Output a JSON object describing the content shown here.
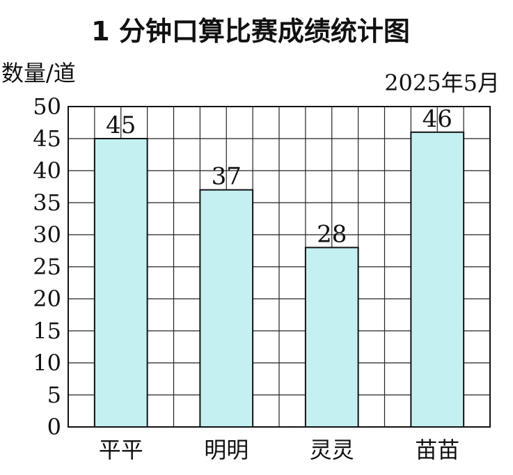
{
  "chart_data": {
    "type": "bar",
    "title": "1 分钟口算比赛成绩统计图",
    "ylabel": "数量/道",
    "date_note": "2025年5月",
    "categories": [
      "平平",
      "明明",
      "灵灵",
      "苗苗"
    ],
    "values": [
      45,
      37,
      28,
      46
    ],
    "data_labels": [
      "45",
      "37",
      "28",
      "46"
    ],
    "yticks": [
      "0",
      "5",
      "10",
      "15",
      "20",
      "25",
      "30",
      "35",
      "40",
      "45",
      "50"
    ],
    "ylim": [
      0,
      50
    ],
    "ytick_step": 5,
    "minor_gridlines": true,
    "bar_color": "#c4f0f2",
    "grid": true
  }
}
